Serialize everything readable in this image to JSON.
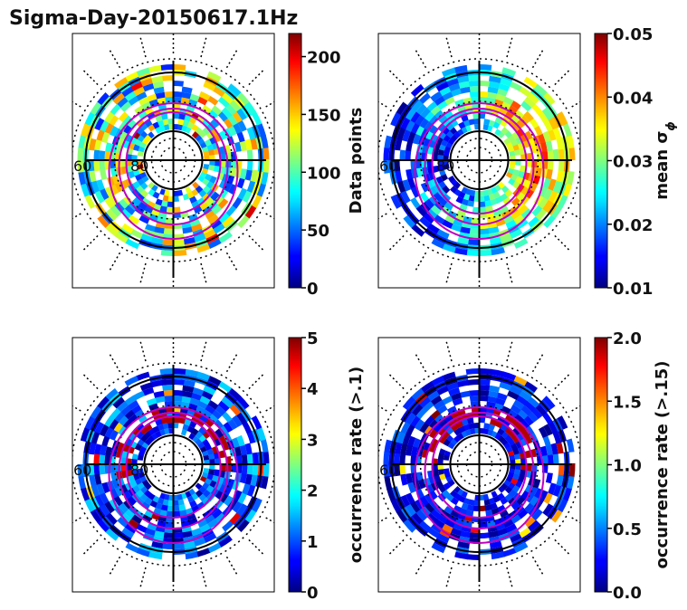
{
  "title": "Sigma-Day-20150617.1Hz",
  "chart_data": [
    {
      "type": "heatmap",
      "projection": "polar",
      "lat_labels": [
        "60",
        "80"
      ],
      "colormap": "jet",
      "colorbar_label": "Data points",
      "colorbar_range": [
        0,
        220
      ],
      "colorbar_ticks": [
        "0",
        "50",
        "100",
        "150",
        "200"
      ],
      "colorbar_tick_values": [
        0,
        50,
        100,
        150,
        200
      ],
      "high_ring_mlat": 70,
      "ring_band_lo": 0.15,
      "ring_band_hi": 0.75
    },
    {
      "type": "heatmap",
      "projection": "polar",
      "lat_labels": [
        "60",
        "80"
      ],
      "colormap": "jet",
      "colorbar_label": "mean σ",
      "colorbar_label_sub": "ϕ",
      "colorbar_range": [
        0.01,
        0.05
      ],
      "colorbar_ticks": [
        "0.01",
        "0.02",
        "0.03",
        "0.04",
        "0.05"
      ],
      "colorbar_tick_values": [
        0.01,
        0.02,
        0.03,
        0.04,
        0.05
      ],
      "ring_band_lo": 0.2,
      "ring_band_hi": 1.0
    },
    {
      "type": "heatmap",
      "projection": "polar",
      "lat_labels": [
        "60",
        "80"
      ],
      "colormap": "jet",
      "colorbar_label": "occurrence rate (>.1)",
      "colorbar_range": [
        0,
        5
      ],
      "colorbar_ticks": [
        "0",
        "1",
        "2",
        "3",
        "4",
        "5"
      ],
      "colorbar_tick_values": [
        0,
        1,
        2,
        3,
        4,
        5
      ],
      "ring_band_lo": 0.0,
      "ring_band_hi": 0.35
    },
    {
      "type": "heatmap",
      "projection": "polar",
      "lat_labels": [
        "60"
      ],
      "colormap": "jet",
      "colorbar_label": "occurrence rate (>.15)",
      "colorbar_range": [
        0,
        2
      ],
      "colorbar_ticks": [
        "0.0",
        "0.5",
        "1.0",
        "1.5",
        "2.0"
      ],
      "colorbar_tick_values": [
        0,
        0.5,
        1.0,
        1.5,
        2.0
      ],
      "ring_band_lo": 0.0,
      "ring_band_hi": 0.25
    }
  ]
}
